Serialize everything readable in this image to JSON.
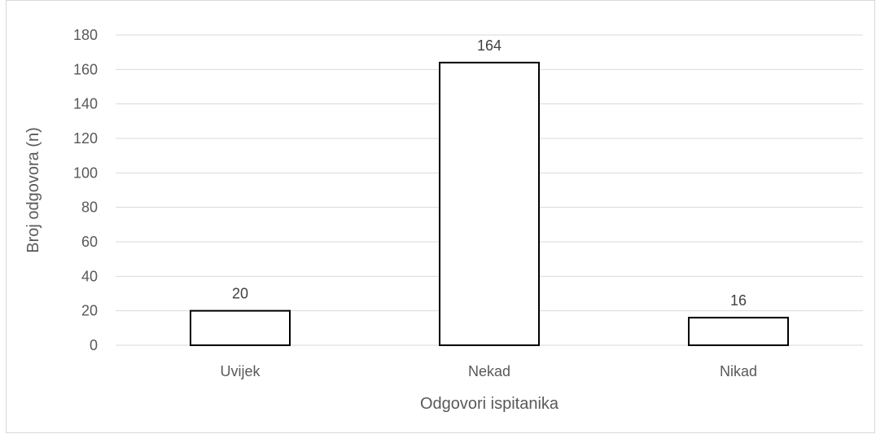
{
  "chart_data": {
    "type": "bar",
    "categories": [
      "Uvijek",
      "Nekad",
      "Nikad"
    ],
    "values": [
      20,
      164,
      16
    ],
    "data_labels": [
      "20",
      "164",
      "16"
    ],
    "xlabel": "Odgovori ispitanika",
    "ylabel": "Broj odgovora (n)",
    "ylim": [
      0,
      180
    ],
    "yticks": [
      "0",
      "20",
      "40",
      "60",
      "80",
      "100",
      "120",
      "140",
      "160",
      "180"
    ],
    "grid": true,
    "legend": "none",
    "colors": {
      "bar_fill": "#ffffff",
      "bar_stroke": "#000000",
      "gridline": "#d9d9d9",
      "axis_line": "#d9d9d9",
      "text": "#595959"
    }
  }
}
